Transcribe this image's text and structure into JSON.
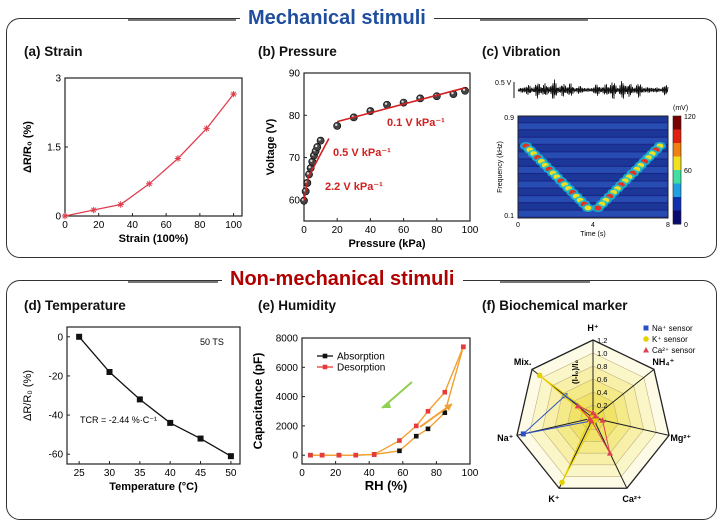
{
  "sections": {
    "mechanical": {
      "title": "Mechanical stimuli",
      "color": "#1f4e9e"
    },
    "non_mechanical": {
      "title": "Non-mechanical stimuli",
      "color": "#b00000"
    }
  },
  "panels": {
    "a": "(a) Strain",
    "b": "(b) Pressure",
    "c": "(c) Vibration",
    "d": "(d) Temperature",
    "e": "(e) Humidity",
    "f": "(f) Biochemical marker"
  },
  "chart_data": [
    {
      "id": "a",
      "type": "line",
      "xlabel": "Strain (100%)",
      "ylabel": "ΔR/R₀ (%)",
      "xticks": [
        0,
        20,
        40,
        60,
        80,
        100
      ],
      "yticks": [
        "0",
        "1.5",
        "3"
      ],
      "xlim": [
        0,
        105
      ],
      "ylim": [
        0,
        3
      ],
      "x": [
        0,
        17,
        33,
        50,
        67,
        84,
        100
      ],
      "y": [
        0.0,
        0.13,
        0.25,
        0.7,
        1.25,
        1.9,
        2.65
      ],
      "color": "#e04050"
    },
    {
      "id": "b",
      "type": "scatter",
      "xlabel": "Pressure (kPa)",
      "ylabel": "Voltage (V)",
      "xticks": [
        0,
        20,
        40,
        60,
        80,
        100
      ],
      "yticks": [
        60,
        70,
        80,
        90
      ],
      "xlim": [
        0,
        100
      ],
      "ylim": [
        55,
        90
      ],
      "x": [
        0,
        1,
        2,
        3,
        4,
        5,
        6,
        7,
        8,
        10,
        20,
        30,
        40,
        50,
        60,
        70,
        80,
        90,
        97
      ],
      "y": [
        59.8,
        62,
        64,
        66,
        67.5,
        69,
        70.5,
        71.5,
        72.5,
        74,
        77.5,
        79.5,
        81,
        82.5,
        83,
        84,
        84.5,
        85,
        85.8
      ],
      "fit_segments": [
        {
          "x": [
            0,
            2.5
          ],
          "y": [
            59.8,
            65.3
          ]
        },
        {
          "x": [
            2.5,
            15
          ],
          "y": [
            65.3,
            74.5
          ]
        },
        {
          "x": [
            20,
            97
          ],
          "y": [
            78.5,
            86.5
          ]
        }
      ],
      "annotations": [
        "0.1 V kPa⁻¹",
        "0.5 V kPa⁻¹",
        "2.2 V kPa⁻¹"
      ],
      "fit_color": "#d02020"
    },
    {
      "id": "c",
      "type": "heatmap",
      "waveform_label": "0.5 V",
      "xlabel": "Time (s)",
      "ylabel": "Frequency (kHz)",
      "xticks": [
        0,
        4,
        8
      ],
      "yticks": [
        "0.1",
        "0.9"
      ],
      "colorbar_label": "(mV)",
      "colorbar_ticks": [
        0,
        60,
        120
      ]
    },
    {
      "id": "d",
      "type": "line",
      "xlabel": "Temperature (°C)",
      "ylabel": "ΔR/R₀ (%)",
      "xticks": [
        25,
        30,
        35,
        40,
        45,
        50
      ],
      "yticks": [
        0,
        -20,
        -40,
        -60
      ],
      "xlim": [
        23,
        51.5
      ],
      "ylim": [
        -65,
        5
      ],
      "x": [
        25,
        30,
        35,
        40,
        45,
        50
      ],
      "y": [
        0,
        -18,
        -32,
        -44,
        -52,
        -61
      ],
      "annotations": [
        "50 TS",
        "TCR = -2.44 %·C⁻¹"
      ],
      "color": "#111111"
    },
    {
      "id": "e",
      "type": "line",
      "xlabel": "RH (%)",
      "ylabel": "Capacitance (pF)",
      "xticks": [
        0,
        20,
        40,
        60,
        80,
        100
      ],
      "yticks": [
        0,
        2000,
        4000,
        6000,
        8000
      ],
      "xlim": [
        0,
        100
      ],
      "ylim": [
        -600,
        8000
      ],
      "series": [
        {
          "name": "Absorption",
          "color": "#111111",
          "x": [
            5,
            12,
            22,
            32,
            43,
            58,
            68,
            75,
            85,
            96
          ],
          "y": [
            0,
            0,
            0,
            0,
            50,
            300,
            1300,
            1800,
            2900,
            7400
          ]
        },
        {
          "name": "Desorption",
          "color": "#e83a3a",
          "x": [
            5,
            12,
            22,
            32,
            43,
            58,
            68,
            75,
            85,
            96
          ],
          "y": [
            0,
            0,
            0,
            0,
            50,
            1000,
            2000,
            3000,
            4300,
            7400
          ]
        }
      ]
    },
    {
      "id": "f",
      "type": "radar",
      "axes": [
        "H⁺",
        "NH₄⁺",
        "Mg²⁺",
        "Ca²⁺",
        "K⁺",
        "Na⁺",
        "Mix."
      ],
      "rticks": [
        "1.2",
        "1.0",
        "0.8",
        "0.6",
        "0.4",
        "0.2"
      ],
      "rlabel": "(I-I₀)/I₀",
      "rmax": 1.2,
      "series": [
        {
          "name": "Na⁺ sensor",
          "color": "#2b4fc8",
          "marker": "square",
          "values": [
            0.05,
            0.05,
            0.05,
            0.05,
            0.05,
            1.1,
            0.55
          ]
        },
        {
          "name": "K⁺ sensor",
          "color": "#e8d000",
          "marker": "circle",
          "values": [
            0.05,
            0.05,
            0.05,
            0.05,
            1.1,
            0.05,
            1.05
          ]
        },
        {
          "name": "Ca²⁺ sensor",
          "color": "#e04050",
          "marker": "triangle",
          "values": [
            0.08,
            0.05,
            0.15,
            0.6,
            0.05,
            0.05,
            0.3
          ]
        }
      ]
    }
  ]
}
